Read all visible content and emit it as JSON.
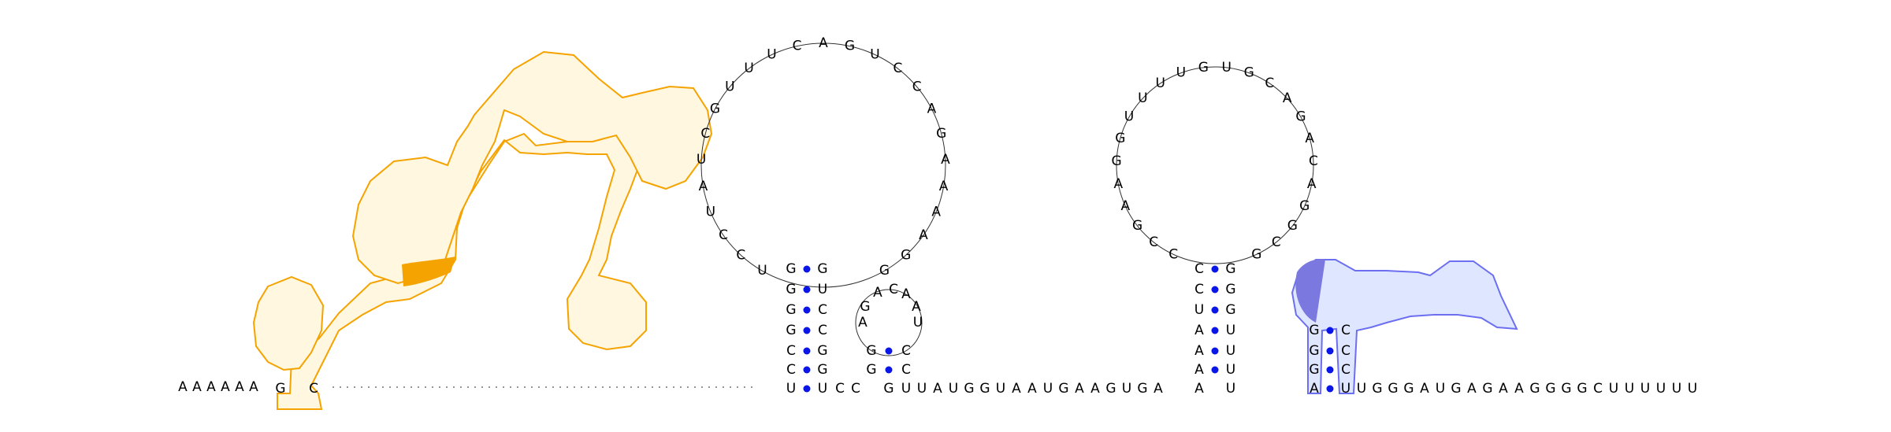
{
  "colors": {
    "left_domain_outline": "#f5a300",
    "left_domain_fill": "#fff7e0",
    "left_domain_highlight": "#f5a300",
    "right_domain_outline": "#6b6ff0",
    "right_domain_fill": "#dfe6ff",
    "right_domain_highlight": "#7b78e0",
    "base_pair": "#0a16e8",
    "backbone": "#333333"
  },
  "strand": {
    "five_prime_tail": "AAAAAA",
    "three_prime_tail": "UGGGAUGAGAAGGGGCUUUUUU"
  },
  "hairpins": {
    "h1_loop": "UCCUAUCGUUUCAGUCCAGAAAAGG",
    "h2_loop": "CCGAAGGUUUUGUGCAGACAGGCG"
  },
  "base_pairs": [
    [
      "G",
      "U"
    ],
    [
      "G",
      "C"
    ],
    [
      "G",
      "C"
    ],
    [
      "G",
      "G"
    ],
    [
      "C",
      "C"
    ],
    [
      "C",
      "G"
    ],
    [
      "C",
      "G"
    ],
    [
      "C",
      "G"
    ],
    [
      "U",
      "G"
    ],
    [
      "A",
      "U"
    ],
    [
      "A",
      "U"
    ],
    [
      "A",
      "U"
    ]
  ]
}
